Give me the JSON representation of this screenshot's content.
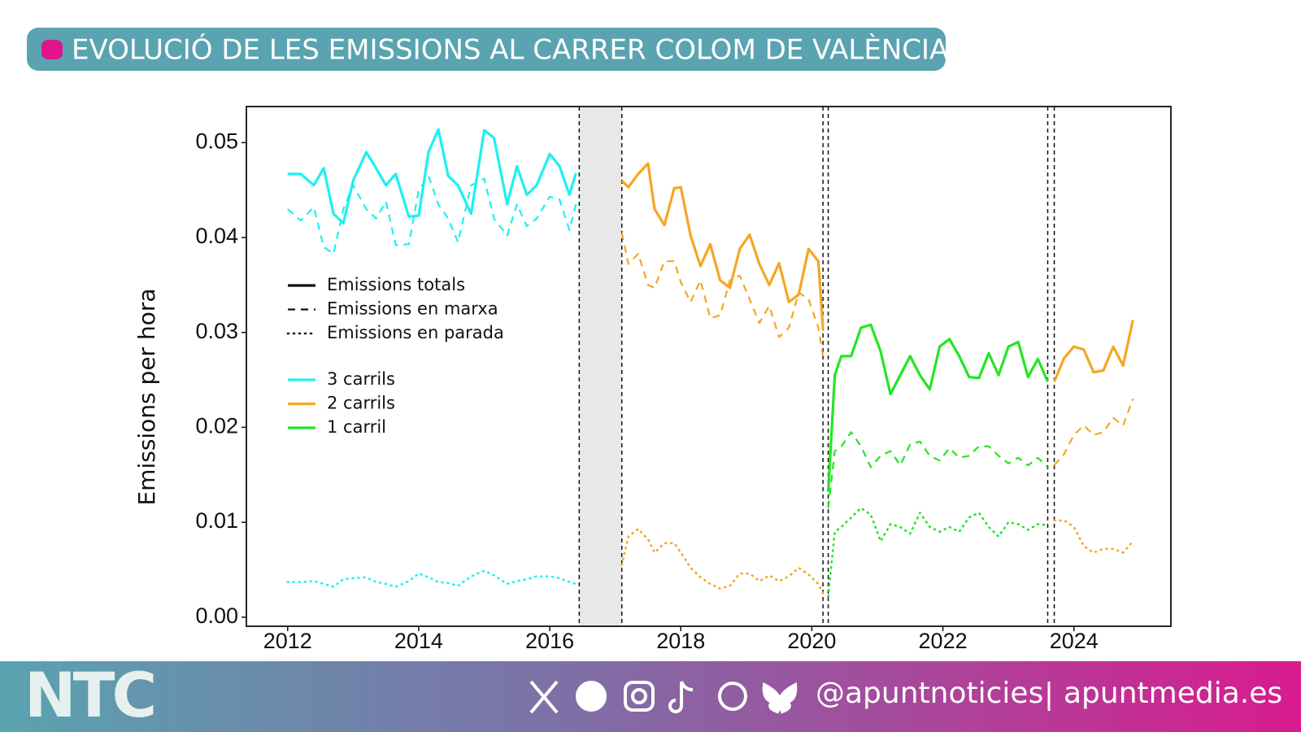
{
  "chart_data": {
    "type": "line",
    "title": "EVOLUCIÓ DE LES EMISSIONS AL CARRER COLOM DE VALÈNCIA",
    "y_label": "Emissions per hora",
    "xlim": [
      2011.37,
      2025.48
    ],
    "ylim": [
      -0.00096,
      0.0538
    ],
    "xticks": [
      2012,
      2014,
      2016,
      2018,
      2020,
      2022,
      2024
    ],
    "yticks": [
      {
        "value": 0,
        "label": "0.00"
      },
      0.01,
      0.02,
      0.03,
      0.04,
      0.05
    ],
    "vlines": [
      2016.45,
      2017.1,
      2020.17,
      2020.25,
      2023.6,
      2023.7
    ],
    "shade": [
      2016.45,
      2017.1
    ],
    "styles": [
      {
        "name": "Emissions totals",
        "dash": "solid"
      },
      {
        "name": "Emissions en marxa",
        "dash": "dashed"
      },
      {
        "name": "Emissions en parada",
        "dash": "dotted"
      }
    ],
    "series": [
      {
        "name": "3 carrils",
        "color": "#1ef0f0",
        "x": [
          2012.0,
          2012.2,
          2012.4,
          2012.55,
          2012.7,
          2012.85,
          2013.0,
          2013.2,
          2013.35,
          2013.5,
          2013.65,
          2013.85,
          2014.0,
          2014.15,
          2014.3,
          2014.45,
          2014.6,
          2014.8,
          2015.0,
          2015.15,
          2015.35,
          2015.5,
          2015.65,
          2015.8,
          2016.0,
          2016.15,
          2016.3,
          2016.4
        ],
        "lines": [
          [
            0.0467,
            0.0467,
            0.0455,
            0.0473,
            0.0425,
            0.0415,
            0.046,
            0.049,
            0.0473,
            0.0455,
            0.0467,
            0.0422,
            0.0423,
            0.049,
            0.0514,
            0.0465,
            0.0455,
            0.0425,
            0.0513,
            0.0505,
            0.0435,
            0.0475,
            0.0445,
            0.0455,
            0.0488,
            0.0475,
            0.0445,
            0.0468
          ],
          [
            0.043,
            0.0418,
            0.0432,
            0.039,
            0.0383,
            0.043,
            0.0455,
            0.043,
            0.042,
            0.0438,
            0.0392,
            0.0393,
            0.045,
            0.0465,
            0.0435,
            0.042,
            0.0395,
            0.0455,
            0.0462,
            0.042,
            0.0402,
            0.0435,
            0.0412,
            0.042,
            0.0443,
            0.044,
            0.0408,
            0.0435
          ],
          [
            0.0037,
            0.0037,
            0.0038,
            0.0035,
            0.0032,
            0.004,
            0.0041,
            0.0042,
            0.0037,
            0.0035,
            0.0032,
            0.0038,
            0.0046,
            0.0042,
            0.0037,
            0.0036,
            0.0033,
            0.0043,
            0.0049,
            0.0044,
            0.0035,
            0.0038,
            0.004,
            0.0043,
            0.0043,
            0.0041,
            0.0037,
            0.0035
          ]
        ]
      },
      {
        "name": "2 carrils",
        "color": "#f5a623",
        "x": [
          2017.1,
          2017.2,
          2017.35,
          2017.5,
          2017.6,
          2017.75,
          2017.9,
          2018.0,
          2018.15,
          2018.3,
          2018.45,
          2018.6,
          2018.75,
          2018.9,
          2019.05,
          2019.2,
          2019.35,
          2019.5,
          2019.65,
          2019.8,
          2019.95,
          2020.1,
          2020.17,
          null,
          2023.7,
          2023.85,
          2024.0,
          2024.15,
          2024.3,
          2024.45,
          2024.6,
          2024.75,
          2024.9
        ],
        "lines": [
          [
            0.046,
            0.0453,
            0.0467,
            0.0478,
            0.043,
            0.0413,
            0.0452,
            0.0453,
            0.0402,
            0.037,
            0.0393,
            0.0355,
            0.0347,
            0.0388,
            0.0403,
            0.0372,
            0.035,
            0.0373,
            0.0332,
            0.034,
            0.0388,
            0.0375,
            0.0303,
            null,
            0.0248,
            0.0273,
            0.0285,
            0.0282,
            0.0258,
            0.026,
            0.0285,
            0.0265,
            0.0313
          ],
          [
            0.0405,
            0.0372,
            0.0383,
            0.035,
            0.0347,
            0.0375,
            0.0375,
            0.0353,
            0.0332,
            0.0355,
            0.0315,
            0.0318,
            0.0355,
            0.036,
            0.0335,
            0.031,
            0.0328,
            0.0295,
            0.0305,
            0.0342,
            0.0335,
            0.0305,
            0.0275,
            null,
            0.016,
            0.0172,
            0.0192,
            0.0202,
            0.0192,
            0.0195,
            0.021,
            0.0202,
            0.023
          ],
          [
            0.0055,
            0.0085,
            0.0093,
            0.0082,
            0.0068,
            0.0078,
            0.0078,
            0.0068,
            0.0052,
            0.0042,
            0.0035,
            0.003,
            0.0033,
            0.0046,
            0.0046,
            0.0038,
            0.0044,
            0.0038,
            0.0043,
            0.0052,
            0.0045,
            0.0035,
            0.0025,
            null,
            0.0102,
            0.0102,
            0.0095,
            0.0075,
            0.0068,
            0.0072,
            0.0072,
            0.0068,
            0.008
          ]
        ]
      },
      {
        "name": "1 carril",
        "color": "#22e622",
        "x": [
          2020.25,
          2020.35,
          2020.45,
          2020.6,
          2020.75,
          2020.9,
          2021.05,
          2021.2,
          2021.35,
          2021.5,
          2021.65,
          2021.8,
          2021.95,
          2022.1,
          2022.25,
          2022.4,
          2022.55,
          2022.7,
          2022.85,
          2023.0,
          2023.15,
          2023.3,
          2023.45,
          2023.6
        ],
        "lines": [
          [
            0.0132,
            0.0255,
            0.0275,
            0.0275,
            0.0305,
            0.0308,
            0.028,
            0.0235,
            0.0255,
            0.0275,
            0.0255,
            0.024,
            0.0285,
            0.0293,
            0.0275,
            0.0253,
            0.0252,
            0.0278,
            0.0255,
            0.0285,
            0.029,
            0.0253,
            0.0272,
            0.0248
          ],
          [
            0.0115,
            0.0175,
            0.018,
            0.0195,
            0.018,
            0.0158,
            0.017,
            0.0175,
            0.016,
            0.0182,
            0.0185,
            0.017,
            0.0165,
            0.0178,
            0.0168,
            0.017,
            0.018,
            0.018,
            0.017,
            0.0162,
            0.0168,
            0.016,
            0.0168,
            0.0158
          ],
          [
            0.0022,
            0.009,
            0.0095,
            0.0105,
            0.0115,
            0.0108,
            0.008,
            0.0098,
            0.0095,
            0.0088,
            0.011,
            0.0095,
            0.009,
            0.0095,
            0.009,
            0.0105,
            0.011,
            0.0095,
            0.0085,
            0.01,
            0.0098,
            0.0092,
            0.0098,
            0.0097
          ]
        ]
      }
    ]
  },
  "footer": {
    "logo": "NTC",
    "handle": "@apuntnoticies",
    "site": "apuntmedia.es"
  }
}
